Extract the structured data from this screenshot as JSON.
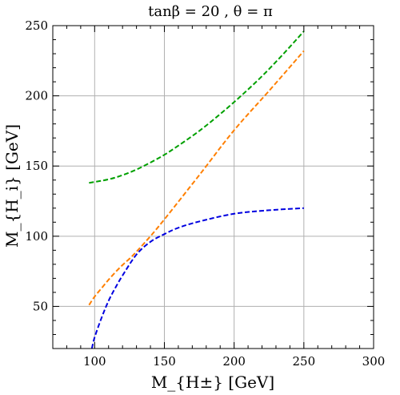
{
  "chart_data": {
    "type": "line",
    "title": "tanβ = 20  ,    θ = π",
    "xlabel": "M_{H±}   [GeV]",
    "ylabel": "M_{H_i}   [GeV]",
    "xlim": [
      70,
      300
    ],
    "ylim": [
      20,
      250
    ],
    "xticks": [
      100,
      150,
      200,
      250,
      300
    ],
    "yticks": [
      50,
      100,
      150,
      200,
      250
    ],
    "grid": true,
    "series": [
      {
        "color": "#00a000",
        "x": [
          96,
          110,
          120,
          130,
          140,
          150,
          160,
          175,
          190,
          205,
          220,
          235,
          250
        ],
        "y": [
          138,
          140.5,
          143.5,
          147.5,
          152.5,
          158,
          164.5,
          175,
          187,
          200,
          214,
          229.5,
          246
        ]
      },
      {
        "color": "#ff7f00",
        "x": [
          96,
          100,
          105,
          110,
          115,
          120,
          125,
          130,
          140,
          150,
          175,
          200,
          225,
          250
        ],
        "y": [
          51,
          57,
          63,
          69,
          74.5,
          79.5,
          84,
          89,
          100,
          112,
          143.5,
          175.5,
          203.5,
          232
        ]
      },
      {
        "color": "#0000e0",
        "x": [
          98,
          100,
          105,
          110,
          115,
          120,
          130,
          140,
          150,
          160,
          175,
          200,
          225,
          250
        ],
        "y": [
          20,
          28,
          42,
          54,
          63.5,
          72,
          87,
          96,
          101.5,
          106,
          110.5,
          116,
          118.5,
          120
        ]
      }
    ]
  }
}
